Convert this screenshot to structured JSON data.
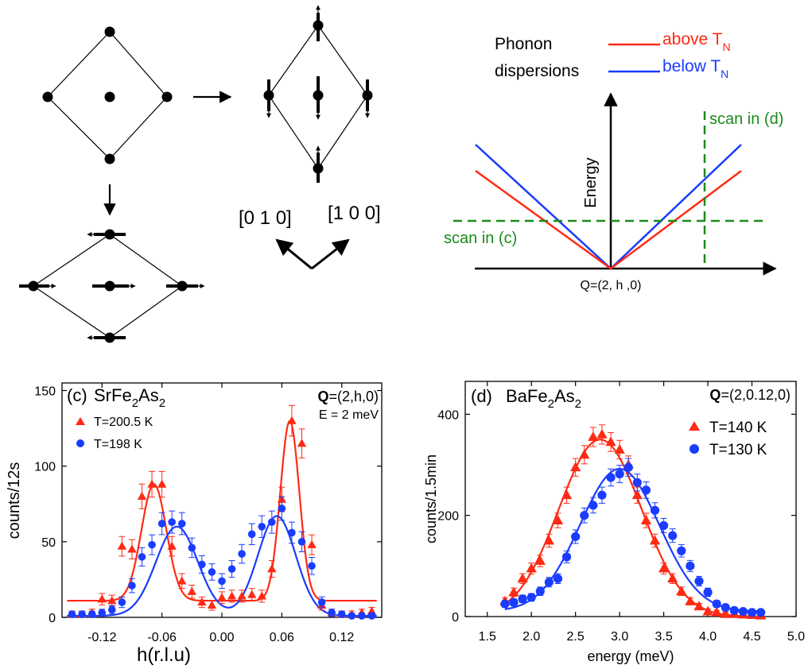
{
  "schematic": {
    "directions": {
      "dir1": "[0 1 0]",
      "dir2": "[1 0 0]"
    },
    "dispersion": {
      "title_line1": "Phonon",
      "title_line2": "dispersions",
      "legend_above_text": "above T",
      "legend_above_sub": "N",
      "legend_below_text": "below T",
      "legend_below_sub": "N",
      "y_axis": "Energy",
      "x_axis": "Q=(2, h ,0)",
      "scan_c": "scan in (c)",
      "scan_d": "scan in (d)",
      "colors": {
        "above": "#ff2a14",
        "below": "#1a3cff",
        "scan": "#1a8a1a"
      }
    }
  },
  "chart_data": [
    {
      "type": "scatter",
      "panel_label": "(c)",
      "material": "SrFe",
      "material_sub1": "2",
      "material_mid": "As",
      "material_sub2": "2",
      "q_bold": "Q",
      "q_rest": "=(2,h,0)",
      "energy_label": "E = 2 meV",
      "xlabel": "h(r.l.u)",
      "ylabel": "counts/12s",
      "xlim": [
        -0.16,
        0.16
      ],
      "ylim": [
        0,
        155
      ],
      "xticks": [
        "-0.12",
        "-0.06",
        "0.00",
        "0.06",
        "0.12"
      ],
      "xtick_values": [
        -0.12,
        -0.06,
        0.0,
        0.06,
        0.12
      ],
      "yticks": [
        "0",
        "50",
        "100",
        "150"
      ],
      "ytick_values": [
        0,
        50,
        100,
        150
      ],
      "series": [
        {
          "name": "T=200.5 K",
          "color": "#ff2a14",
          "marker": "triangle",
          "x": [
            -0.15,
            -0.14,
            -0.13,
            -0.12,
            -0.11,
            -0.1,
            -0.09,
            -0.08,
            -0.07,
            -0.06,
            -0.05,
            -0.04,
            -0.03,
            -0.02,
            -0.01,
            0.0,
            0.01,
            0.02,
            0.03,
            0.04,
            0.05,
            0.06,
            0.07,
            0.08,
            0.09,
            0.1,
            0.11,
            0.12,
            0.13,
            0.14,
            0.15
          ],
          "y": [
            2,
            2,
            3,
            12,
            11,
            47,
            45,
            80,
            88,
            88,
            47,
            24,
            17,
            10,
            8,
            13,
            14,
            14,
            15,
            14,
            32,
            78,
            130,
            115,
            48,
            8,
            3,
            2,
            2,
            3,
            4
          ]
        },
        {
          "name": "T=198 K",
          "color": "#1a3cff",
          "marker": "circle",
          "x": [
            -0.15,
            -0.14,
            -0.13,
            -0.12,
            -0.11,
            -0.1,
            -0.09,
            -0.08,
            -0.07,
            -0.06,
            -0.05,
            -0.04,
            -0.03,
            -0.02,
            -0.01,
            0.0,
            0.01,
            0.02,
            0.03,
            0.04,
            0.05,
            0.06,
            0.07,
            0.08,
            0.09,
            0.1,
            0.11,
            0.12,
            0.13,
            0.14,
            0.15
          ],
          "y": [
            2,
            2,
            2,
            3,
            5,
            10,
            21,
            40,
            48,
            62,
            63,
            62,
            46,
            35,
            30,
            24,
            32,
            42,
            55,
            60,
            63,
            72,
            56,
            50,
            34,
            10,
            3,
            2,
            1,
            1,
            1
          ]
        }
      ]
    },
    {
      "type": "scatter",
      "panel_label": "(d)",
      "material": "BaFe",
      "material_sub1": "2",
      "material_mid": "As",
      "material_sub2": "2",
      "q_bold": "Q",
      "q_rest": "=(2,0.12,0)",
      "xlabel": "energy (meV)",
      "ylabel": "counts/1.5min",
      "xlim": [
        1.25,
        5.0
      ],
      "ylim": [
        0,
        465
      ],
      "xticks": [
        "1.5",
        "2.0",
        "2.5",
        "3.0",
        "3.5",
        "4.0",
        "4.5",
        "5.0"
      ],
      "xtick_values": [
        1.5,
        2.0,
        2.5,
        3.0,
        3.5,
        4.0,
        4.5,
        5.0
      ],
      "yticks": [
        "0",
        "200",
        "400"
      ],
      "ytick_values": [
        0,
        200,
        400
      ],
      "series": [
        {
          "name": "T=140 K",
          "color": "#ff2a14",
          "marker": "triangle",
          "x": [
            1.7,
            1.8,
            1.9,
            2.0,
            2.1,
            2.2,
            2.3,
            2.4,
            2.5,
            2.6,
            2.7,
            2.8,
            2.9,
            3.0,
            3.1,
            3.2,
            3.3,
            3.4,
            3.5,
            3.6,
            3.7,
            3.8,
            3.9,
            4.0,
            4.1,
            4.2,
            4.3,
            4.4,
            4.5,
            4.6
          ],
          "y": [
            30,
            48,
            75,
            95,
            110,
            150,
            190,
            240,
            295,
            320,
            355,
            360,
            345,
            330,
            300,
            240,
            190,
            150,
            95,
            75,
            50,
            30,
            20,
            10,
            8,
            5,
            5,
            4,
            3,
            2
          ]
        },
        {
          "name": "T=130 K",
          "color": "#1a3cff",
          "marker": "circle",
          "x": [
            1.7,
            1.8,
            1.9,
            2.0,
            2.1,
            2.2,
            2.3,
            2.4,
            2.5,
            2.6,
            2.7,
            2.8,
            2.9,
            3.0,
            3.1,
            3.2,
            3.3,
            3.4,
            3.5,
            3.6,
            3.7,
            3.8,
            3.9,
            4.0,
            4.1,
            4.2,
            4.3,
            4.4,
            4.5,
            4.6
          ],
          "y": [
            25,
            28,
            35,
            38,
            50,
            68,
            75,
            118,
            158,
            200,
            220,
            240,
            275,
            282,
            295,
            265,
            250,
            210,
            180,
            160,
            130,
            100,
            70,
            48,
            25,
            18,
            12,
            10,
            8,
            8
          ]
        }
      ]
    }
  ]
}
